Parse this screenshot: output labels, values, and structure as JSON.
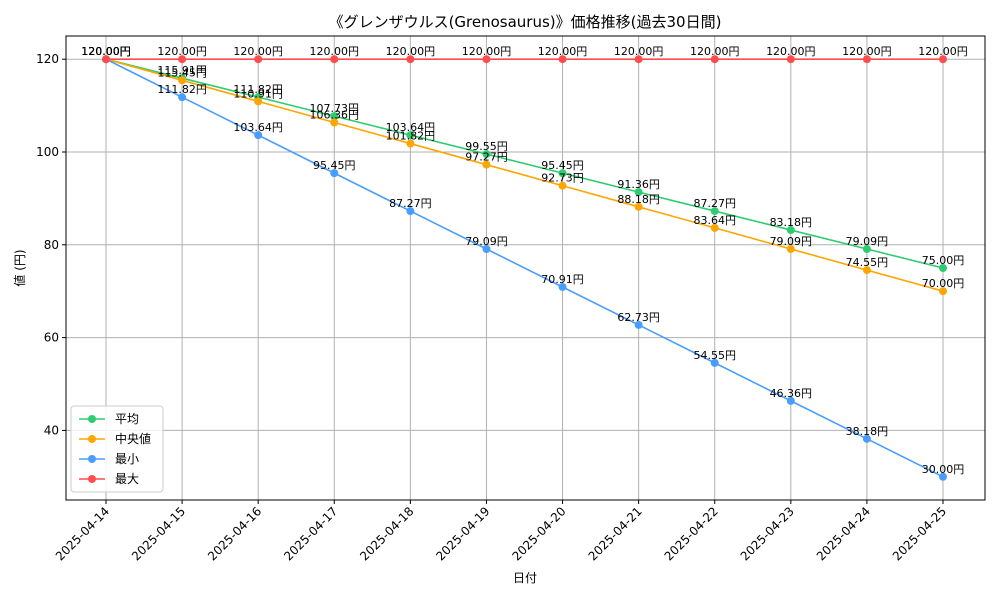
{
  "chart_data": {
    "type": "line",
    "title": "《グレンザウルス(Grenosaurus)》価格推移(過去30日間)",
    "xlabel": "日付",
    "ylabel": "値 (円)",
    "categories": [
      "2025-04-14",
      "2025-04-15",
      "2025-04-16",
      "2025-04-17",
      "2025-04-18",
      "2025-04-19",
      "2025-04-20",
      "2025-04-21",
      "2025-04-22",
      "2025-04-23",
      "2025-04-24",
      "2025-04-25"
    ],
    "ylim": [
      25,
      125
    ],
    "yticks": [
      40,
      60,
      80,
      100,
      120
    ],
    "grid": true,
    "legend_position": "lower-left",
    "series": [
      {
        "name": "平均",
        "color": "#2ecc71",
        "values": [
          120.0,
          115.91,
          111.82,
          107.73,
          103.64,
          99.55,
          95.45,
          91.36,
          87.27,
          83.18,
          79.09,
          75.0
        ],
        "labels": [
          "120.00円",
          "115.91円",
          "111.82円",
          "107.73円",
          "103.64円",
          "99.55円",
          "95.45円",
          "91.36円",
          "87.27円",
          "83.18円",
          "79.09円",
          "75.00円"
        ]
      },
      {
        "name": "中央値",
        "color": "#ffa500",
        "values": [
          120.0,
          115.45,
          110.91,
          106.36,
          101.82,
          97.27,
          92.73,
          88.18,
          83.64,
          79.09,
          74.55,
          70.0
        ],
        "labels": [
          "120.00円",
          "115.45円",
          "110.91円",
          "106.36円",
          "101.82円",
          "97.27円",
          "92.73円",
          "88.18円",
          "83.64円",
          "79.09円",
          "74.55円",
          "70.00円"
        ]
      },
      {
        "name": "最小",
        "color": "#4a9dff",
        "values": [
          120.0,
          111.82,
          103.64,
          95.45,
          87.27,
          79.09,
          70.91,
          62.73,
          54.55,
          46.36,
          38.18,
          30.0
        ],
        "labels": [
          "120.00円",
          "111.82円",
          "103.64円",
          "95.45円",
          "87.27円",
          "79.09円",
          "70.91円",
          "62.73円",
          "54.55円",
          "46.36円",
          "38.18円",
          "30.00円"
        ]
      },
      {
        "name": "最大",
        "color": "#ff4d4d",
        "values": [
          120.0,
          120.0,
          120.0,
          120.0,
          120.0,
          120.0,
          120.0,
          120.0,
          120.0,
          120.0,
          120.0,
          120.0
        ],
        "labels": [
          "120.00円",
          "120.00円",
          "120.00円",
          "120.00円",
          "120.00円",
          "120.00円",
          "120.00円",
          "120.00円",
          "120.00円",
          "120.00円",
          "120.00円",
          "120.00円"
        ]
      }
    ]
  }
}
